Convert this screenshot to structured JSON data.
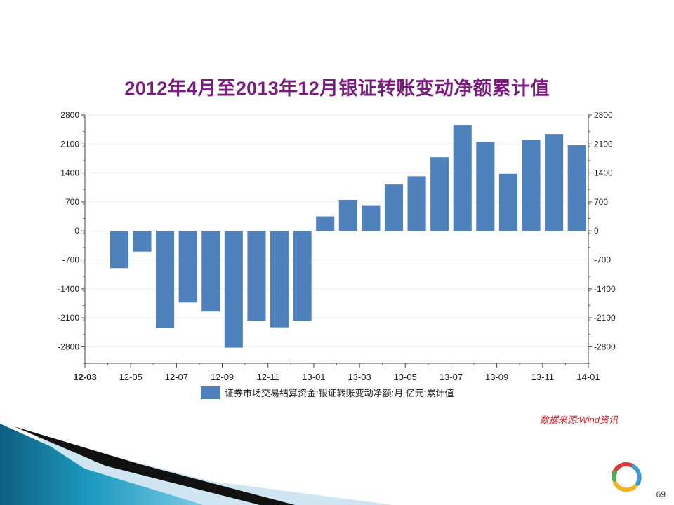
{
  "slide": {
    "title": "2012年4月至2013年12月银证转账变动净额累计值",
    "source_note": "数据来源:Wind资讯",
    "page_number": "69"
  },
  "colors": {
    "title": "#7b1a7f",
    "bar": "#4f81bd",
    "source_note": "#d8202a"
  },
  "chart_data": {
    "type": "bar",
    "title": "2012年4月至2013年12月银证转账变动净额累计值",
    "x_tick_labels": [
      "12-03",
      "12-05",
      "12-07",
      "12-09",
      "12-11",
      "13-01",
      "13-03",
      "13-05",
      "13-07",
      "13-09",
      "13-11",
      "14-01"
    ],
    "categories": [
      "12-04",
      "12-05",
      "12-06",
      "12-07",
      "12-08",
      "12-09",
      "12-10",
      "12-11",
      "12-12",
      "13-01",
      "13-02",
      "13-03",
      "13-04",
      "13-05",
      "13-06",
      "13-07",
      "13-08",
      "13-09",
      "13-10",
      "13-11",
      "13-12"
    ],
    "series": [
      {
        "name": "证券市场交易结算资金:银证转账变动净额:月 亿元:累计值",
        "values": [
          -900,
          -500,
          -2350,
          -1730,
          -1950,
          -2820,
          -2170,
          -2330,
          -2170,
          350,
          750,
          620,
          1120,
          1320,
          1780,
          2560,
          2150,
          1380,
          2190,
          2340,
          2070
        ]
      }
    ],
    "y_ticks": [
      2800,
      2100,
      1400,
      700,
      0,
      -700,
      -1400,
      -2100,
      -2800
    ],
    "ylim": [
      -3200,
      2800
    ],
    "legend": "bottom-center",
    "grid": true
  }
}
